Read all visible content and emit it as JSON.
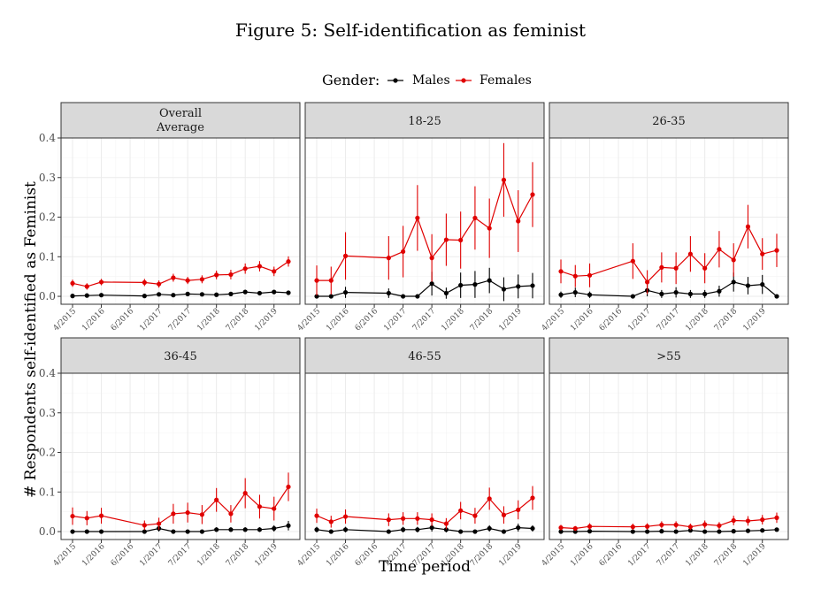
{
  "figure_title": "Figure 5: Self-identification as feminist",
  "chart_data": {
    "type": "line",
    "facet_layout": "2x3",
    "legend": {
      "title": "Gender:",
      "position": "top",
      "entries": [
        {
          "name": "Males",
          "color": "#000000"
        },
        {
          "name": "Females",
          "color": "#e00000"
        }
      ]
    },
    "xlabel": "Time period",
    "ylabel": "# Respondents self-identified as Feminist",
    "ylim": [
      -0.02,
      0.4
    ],
    "yticks": [
      "0.0",
      "0.1",
      "0.2",
      "0.3",
      "0.4"
    ],
    "grid": true,
    "time_index": [
      0,
      1,
      2,
      3,
      4,
      5,
      6,
      7,
      8,
      9,
      10,
      11,
      12,
      13
    ],
    "xtick_positions": [
      0,
      2,
      4,
      6,
      8,
      10,
      12,
      14
    ],
    "xtick_labels": [
      "4/2015",
      "1/2016",
      "6/2016",
      "1/2017",
      "7/2017",
      "1/2018",
      "7/2018",
      "1/2019"
    ],
    "panels": [
      {
        "title": "Overall\nAverage",
        "series": [
          {
            "name": "Males",
            "x": [
              0,
              1,
              2,
              5,
              6,
              7,
              8,
              9,
              10,
              11,
              12,
              13,
              14,
              15
            ],
            "values": [
              0.001,
              0.002,
              0.003,
              0.001,
              0.005,
              0.003,
              0.006,
              0.005,
              0.004,
              0.006,
              0.011,
              0.008,
              0.011,
              0.009
            ],
            "err": [
              0.003,
              0.003,
              0.003,
              0.003,
              0.004,
              0.003,
              0.004,
              0.004,
              0.004,
              0.004,
              0.005,
              0.004,
              0.005,
              0.004
            ]
          },
          {
            "name": "Females",
            "x": [
              0,
              1,
              2,
              5,
              6,
              7,
              8,
              9,
              10,
              11,
              12,
              13,
              14,
              15
            ],
            "values": [
              0.033,
              0.025,
              0.036,
              0.035,
              0.031,
              0.047,
              0.04,
              0.043,
              0.054,
              0.055,
              0.07,
              0.076,
              0.063,
              0.088
            ],
            "err": [
              0.009,
              0.008,
              0.008,
              0.009,
              0.009,
              0.01,
              0.009,
              0.01,
              0.011,
              0.012,
              0.013,
              0.013,
              0.012,
              0.013
            ]
          }
        ]
      },
      {
        "title": "18-25",
        "series": [
          {
            "name": "Males",
            "x": [
              0,
              1,
              2,
              5,
              6,
              7,
              8,
              9,
              10,
              11,
              12,
              13,
              14,
              15
            ],
            "values": [
              0.0,
              0.0,
              0.01,
              0.008,
              0.0,
              0.0,
              0.032,
              0.008,
              0.028,
              0.03,
              0.04,
              0.018,
              0.025,
              0.027
            ],
            "err": [
              0.004,
              0.004,
              0.014,
              0.012,
              0.004,
              0.004,
              0.03,
              0.014,
              0.032,
              0.034,
              0.032,
              0.03,
              0.03,
              0.032
            ]
          },
          {
            "name": "Females",
            "x": [
              0,
              1,
              2,
              5,
              6,
              7,
              8,
              9,
              10,
              11,
              12,
              13,
              14,
              15
            ],
            "values": [
              0.04,
              0.04,
              0.102,
              0.097,
              0.113,
              0.198,
              0.097,
              0.143,
              0.142,
              0.198,
              0.172,
              0.294,
              0.19,
              0.257
            ],
            "err": [
              0.038,
              0.035,
              0.06,
              0.055,
              0.065,
              0.083,
              0.06,
              0.066,
              0.072,
              0.08,
              0.075,
              0.093,
              0.078,
              0.082
            ]
          }
        ]
      },
      {
        "title": "26-35",
        "series": [
          {
            "name": "Males",
            "x": [
              0,
              1,
              2,
              5,
              6,
              7,
              8,
              9,
              10,
              11,
              12,
              13,
              14,
              15
            ],
            "values": [
              0.004,
              0.01,
              0.004,
              0.0,
              0.015,
              0.006,
              0.01,
              0.006,
              0.006,
              0.013,
              0.036,
              0.027,
              0.03,
              0.0
            ],
            "err": [
              0.008,
              0.012,
              0.008,
              0.004,
              0.015,
              0.01,
              0.013,
              0.01,
              0.01,
              0.014,
              0.024,
              0.022,
              0.024,
              0.004
            ]
          },
          {
            "name": "Females",
            "x": [
              0,
              1,
              2,
              5,
              6,
              7,
              8,
              9,
              10,
              11,
              12,
              13,
              14,
              15
            ],
            "values": [
              0.063,
              0.051,
              0.053,
              0.089,
              0.036,
              0.073,
              0.071,
              0.107,
              0.071,
              0.119,
              0.092,
              0.176,
              0.107,
              0.116
            ],
            "err": [
              0.03,
              0.028,
              0.03,
              0.045,
              0.03,
              0.038,
              0.04,
              0.045,
              0.038,
              0.046,
              0.042,
              0.055,
              0.04,
              0.042
            ]
          }
        ]
      },
      {
        "title": "36-45",
        "series": [
          {
            "name": "Males",
            "x": [
              0,
              1,
              2,
              5,
              6,
              7,
              8,
              9,
              10,
              11,
              12,
              13,
              14,
              15
            ],
            "values": [
              0.0,
              0.0,
              0.0,
              0.0,
              0.008,
              0.0,
              0.0,
              0.0,
              0.005,
              0.005,
              0.005,
              0.005,
              0.008,
              0.015
            ],
            "err": [
              0.004,
              0.004,
              0.004,
              0.004,
              0.008,
              0.004,
              0.004,
              0.004,
              0.006,
              0.006,
              0.006,
              0.006,
              0.008,
              0.012
            ]
          },
          {
            "name": "Females",
            "x": [
              0,
              1,
              2,
              5,
              6,
              7,
              8,
              9,
              10,
              11,
              12,
              13,
              14,
              15
            ],
            "values": [
              0.039,
              0.034,
              0.04,
              0.016,
              0.02,
              0.045,
              0.048,
              0.043,
              0.08,
              0.045,
              0.097,
              0.063,
              0.058,
              0.113
            ],
            "err": [
              0.022,
              0.018,
              0.02,
              0.012,
              0.015,
              0.025,
              0.025,
              0.024,
              0.03,
              0.022,
              0.038,
              0.03,
              0.03,
              0.036
            ]
          }
        ]
      },
      {
        "title": "46-55",
        "series": [
          {
            "name": "Males",
            "x": [
              0,
              1,
              2,
              5,
              6,
              7,
              8,
              9,
              10,
              11,
              12,
              13,
              14,
              15
            ],
            "values": [
              0.005,
              0.0,
              0.005,
              0.0,
              0.005,
              0.005,
              0.01,
              0.005,
              0.0,
              0.0,
              0.008,
              0.0,
              0.01,
              0.008
            ],
            "err": [
              0.007,
              0.004,
              0.007,
              0.004,
              0.007,
              0.007,
              0.01,
              0.007,
              0.004,
              0.004,
              0.008,
              0.004,
              0.01,
              0.008
            ]
          },
          {
            "name": "Females",
            "x": [
              0,
              1,
              2,
              5,
              6,
              7,
              8,
              9,
              10,
              11,
              12,
              13,
              14,
              15
            ],
            "values": [
              0.04,
              0.025,
              0.038,
              0.03,
              0.033,
              0.033,
              0.03,
              0.02,
              0.053,
              0.04,
              0.083,
              0.042,
              0.055,
              0.085
            ],
            "err": [
              0.018,
              0.015,
              0.018,
              0.016,
              0.016,
              0.016,
              0.016,
              0.014,
              0.022,
              0.02,
              0.028,
              0.022,
              0.024,
              0.03
            ]
          }
        ]
      },
      {
        "title": ">55",
        "series": [
          {
            "name": "Males",
            "x": [
              0,
              1,
              2,
              5,
              6,
              7,
              8,
              9,
              10,
              11,
              12,
              13,
              14,
              15
            ],
            "values": [
              0.0,
              0.0,
              0.001,
              0.0,
              0.0,
              0.001,
              0.0,
              0.003,
              0.0,
              0.0,
              0.001,
              0.002,
              0.003,
              0.005
            ],
            "err": [
              0.003,
              0.003,
              0.003,
              0.003,
              0.003,
              0.003,
              0.003,
              0.004,
              0.003,
              0.003,
              0.003,
              0.004,
              0.004,
              0.005
            ]
          },
          {
            "name": "Females",
            "x": [
              0,
              1,
              2,
              5,
              6,
              7,
              8,
              9,
              10,
              11,
              12,
              13,
              14,
              15
            ],
            "values": [
              0.01,
              0.008,
              0.013,
              0.012,
              0.013,
              0.017,
              0.017,
              0.012,
              0.018,
              0.015,
              0.028,
              0.027,
              0.03,
              0.035
            ],
            "err": [
              0.007,
              0.006,
              0.008,
              0.008,
              0.008,
              0.009,
              0.009,
              0.008,
              0.01,
              0.009,
              0.012,
              0.012,
              0.012,
              0.013
            ]
          }
        ]
      }
    ]
  }
}
